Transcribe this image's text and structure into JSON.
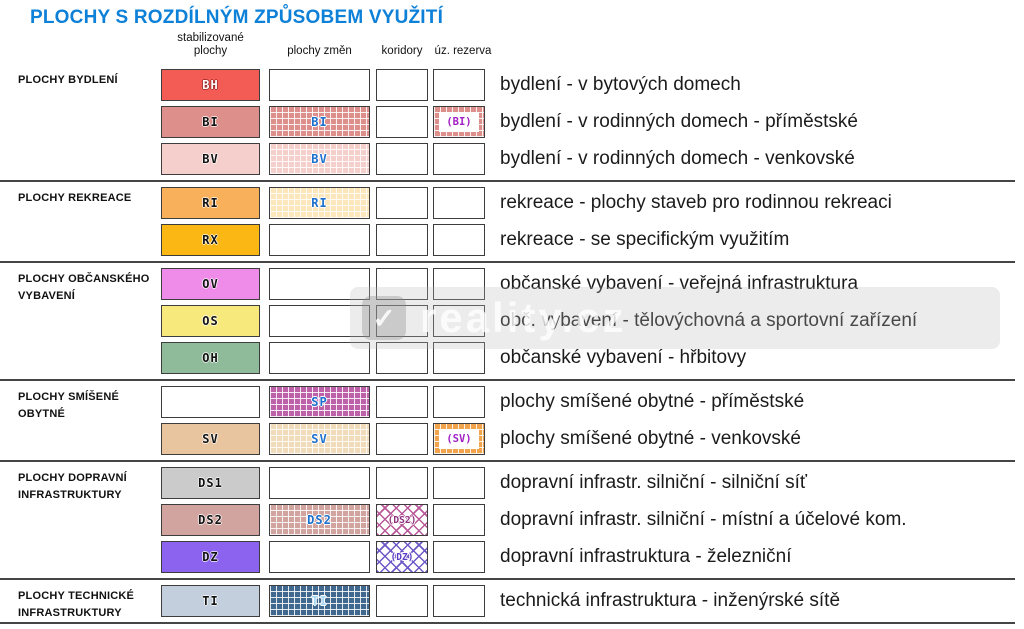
{
  "title": "PLOCHY S ROZDÍLNÝM ZPŮSOBEM VYUŽITÍ",
  "title_color": "#0d80d8",
  "columns": [
    "stabilizované plochy",
    "plochy změn",
    "koridory",
    "úz. rezerva"
  ],
  "watermark": {
    "text": "reality.cz"
  },
  "colors": {
    "BH": "#f25c55",
    "BI": "#dd8f8c",
    "BV": "#f5cfcc",
    "RI": "#f8b05b",
    "RI_zmeny": "#fce6bb",
    "RX": "#fbb713",
    "OV": "#ef8ce9",
    "OS": "#f8e97c",
    "OH": "#90bb9a",
    "SP_zmeny": "#bd62a8",
    "SV": "#e9c59f",
    "SV_zmeny": "#f0dcba",
    "SV_rezerva": "#f2a44d",
    "DS1": "#cbcbcb",
    "DS2": "#d2a49f",
    "DZ": "#8b63ee",
    "TI": "#c3cfdd",
    "TI_zmeny": "#41698f",
    "koridor_DS2": "#b85898",
    "koridor_DZ": "#6e58c8",
    "change_label": "#1c6fcc",
    "reserve_label": "#a21fc4"
  },
  "sections": [
    {
      "label": "PLOCHY BYDLENÍ",
      "label2": "",
      "rows": [
        {
          "stable": "BH",
          "desc": "bydlení - v bytových domech"
        },
        {
          "stable": "BI",
          "zmeny": "BI",
          "rezerva": "(BI)",
          "desc": "bydlení - v rodinných domech - příměstské"
        },
        {
          "stable": "BV",
          "zmeny": "BV",
          "desc": "bydlení - v rodinných domech - venkovské"
        }
      ]
    },
    {
      "label": "PLOCHY REKREACE",
      "label2": "",
      "rows": [
        {
          "stable": "RI",
          "zmeny": "RI",
          "desc": "rekreace - plochy staveb pro rodinnou rekreaci"
        },
        {
          "stable": "RX",
          "desc": "rekreace - se specifickým využitím"
        }
      ]
    },
    {
      "label": "PLOCHY OBČANSKÉHO",
      "label2": "VYBAVENÍ",
      "rows": [
        {
          "stable": "OV",
          "desc": "občanské vybavení - veřejná infrastruktura"
        },
        {
          "stable": "OS",
          "desc": "obč. vybavení - tělovýchovná a sportovní zařízení"
        },
        {
          "stable": "OH",
          "desc": "občanské vybavení - hřbitovy"
        }
      ]
    },
    {
      "label": "PLOCHY SMÍŠENÉ",
      "label2": "OBYTNÉ",
      "rows": [
        {
          "zmeny": "SP",
          "desc": "plochy smíšené obytné - příměstské"
        },
        {
          "stable": "SV",
          "zmeny": "SV",
          "rezerva": "(SV)",
          "desc": "plochy smíšené obytné - venkovské"
        }
      ]
    },
    {
      "label": "PLOCHY DOPRAVNÍ",
      "label2": "INFRASTRUKTURY",
      "rows": [
        {
          "stable": "DS1",
          "desc": "dopravní infrastr. silniční - silniční síť"
        },
        {
          "stable": "DS2",
          "zmeny": "DS2",
          "koridor": "(DS2)",
          "desc": "dopravní infrastr. silniční - místní a účelové kom."
        },
        {
          "stable": "DZ",
          "koridor": "(DZ)",
          "desc": "dopravní infrastruktura - železniční"
        }
      ]
    },
    {
      "label": "PLOCHY TECHNICKÉ",
      "label2": "INFRASTRUKTURY",
      "rows": [
        {
          "stable": "TI",
          "zmeny": "TI",
          "desc": "technická infrastruktura - inženýrské sítě"
        }
      ]
    }
  ]
}
